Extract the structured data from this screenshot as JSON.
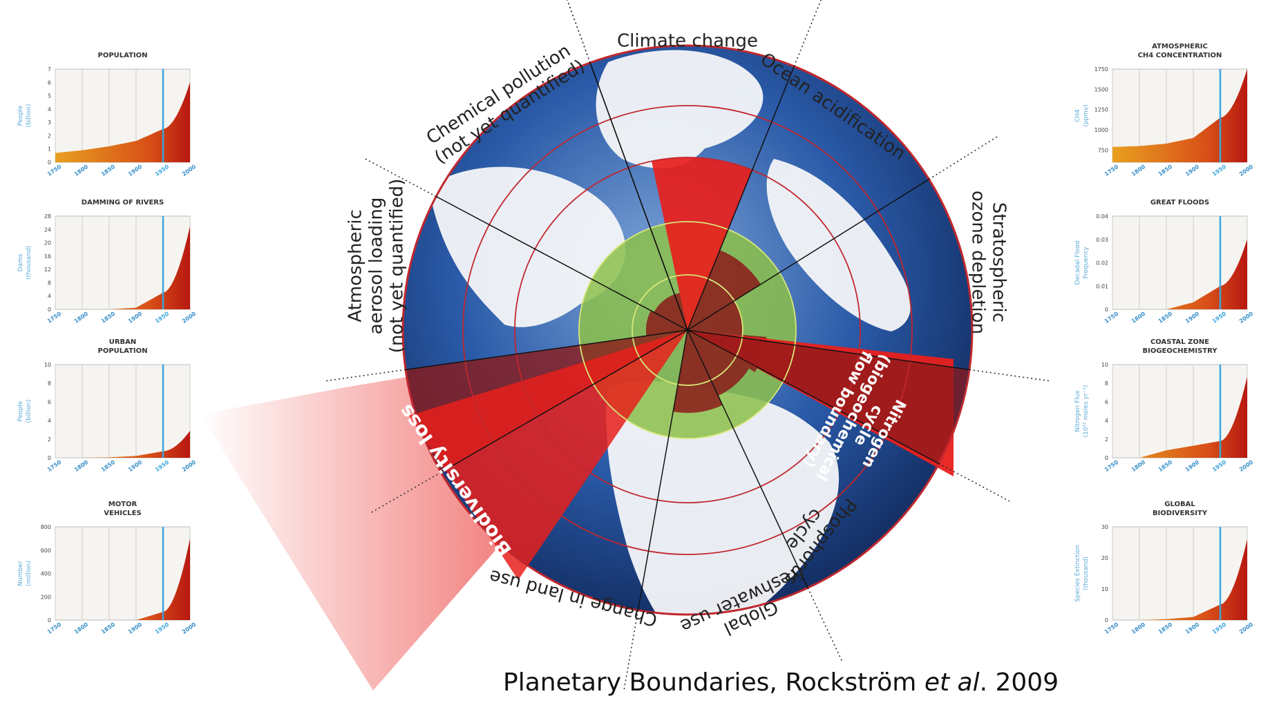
{
  "wheel": {
    "boundaries": [
      {
        "id": "climate",
        "lines": [
          "Climate change"
        ]
      },
      {
        "id": "ocean",
        "lines": [
          "Ocean acidification"
        ]
      },
      {
        "id": "ozone",
        "lines": [
          "Stratospheric",
          "ozone depletion"
        ]
      },
      {
        "id": "nitrogen",
        "lines": [
          "Nitrogen",
          "cycle",
          "(biogeochemical",
          "flow boundary)"
        ]
      },
      {
        "id": "phosphorus",
        "lines": [
          "Phosphorus",
          "cycle"
        ]
      },
      {
        "id": "freshwater",
        "lines": [
          "Global",
          "freshwater use"
        ]
      },
      {
        "id": "landuse",
        "lines": [
          "Change in land use"
        ]
      },
      {
        "id": "biodiversity",
        "lines": [
          "Biodiversity loss"
        ]
      },
      {
        "id": "aerosol",
        "lines": [
          "Atmospheric",
          "aerosol loading",
          "(not yet quantified)"
        ]
      },
      {
        "id": "chemical",
        "lines": [
          "Chemical pollution",
          "(not yet quantified)"
        ]
      }
    ],
    "colors": {
      "ocean": "#2a5aa8",
      "land": "#f4f6f8",
      "safe_zone": "#8cc04a",
      "exceeded": "#e8201c",
      "exceeded_dark": "#8b1a1a",
      "ring": "#c0272d"
    }
  },
  "caption": {
    "main": "Planetary Boundaries, Rockström ",
    "italic": "et al",
    "end": ". 2009"
  },
  "mini_charts": [
    {
      "id": "population",
      "title": [
        "POPULATION"
      ],
      "ylabel": [
        "People",
        "(billion)"
      ],
      "yticks": [
        "0",
        "1",
        "2",
        "3",
        "4",
        "5",
        "6",
        "7"
      ],
      "ymax": 7,
      "xticks": [
        "1750",
        "1800",
        "1850",
        "1900",
        "1950",
        "2000"
      ],
      "x": [
        1750,
        1800,
        1850,
        1900,
        1950,
        2000
      ],
      "y": [
        0.7,
        0.9,
        1.2,
        1.6,
        2.5,
        6.0
      ]
    },
    {
      "id": "dams",
      "title": [
        "DAMMING OF RIVERS"
      ],
      "ylabel": [
        "Dams",
        "(thousand)"
      ],
      "yticks": [
        "0",
        "4",
        "8",
        "12",
        "16",
        "20",
        "24",
        "28"
      ],
      "ymax": 28,
      "xticks": [
        "1750",
        "1800",
        "1850",
        "1900",
        "1950",
        "2000"
      ],
      "x": [
        1750,
        1800,
        1850,
        1900,
        1950,
        2000
      ],
      "y": [
        0,
        0,
        0,
        0.5,
        5,
        25
      ]
    },
    {
      "id": "urban",
      "title": [
        "URBAN",
        "POPULATION"
      ],
      "ylabel": [
        "People",
        "(billion)"
      ],
      "yticks": [
        "0",
        "2",
        "4",
        "6",
        "8",
        "10"
      ],
      "ymax": 10,
      "xticks": [
        "1750",
        "1800",
        "1850",
        "1900",
        "1950",
        "2000"
      ],
      "x": [
        1750,
        1800,
        1850,
        1900,
        1950,
        2000
      ],
      "y": [
        0,
        0,
        0.05,
        0.2,
        0.7,
        2.9
      ]
    },
    {
      "id": "vehicles",
      "title": [
        "MOTOR",
        "VEHICLES"
      ],
      "ylabel": [
        "Number",
        "(million)"
      ],
      "yticks": [
        "0",
        "200",
        "400",
        "600",
        "800"
      ],
      "ymax": 800,
      "xticks": [
        "1750",
        "1800",
        "1850",
        "1900",
        "1950",
        "2000"
      ],
      "x": [
        1750,
        1800,
        1850,
        1900,
        1950,
        2000
      ],
      "y": [
        0,
        0,
        0,
        0,
        70,
        700
      ]
    },
    {
      "id": "ch4",
      "title": [
        "ATMOSPHERIC",
        "CH4 CONCENTRATION"
      ],
      "ylabel": [
        "CH4",
        "(ppmv)"
      ],
      "yticks": [
        "750",
        "1000",
        "1250",
        "1500",
        "1750"
      ],
      "ymin": 600,
      "ymax": 1750,
      "xticks": [
        "1750",
        "1800",
        "1850",
        "1900",
        "1950",
        "2000"
      ],
      "x": [
        1750,
        1800,
        1850,
        1900,
        1950,
        2000
      ],
      "y": [
        790,
        800,
        830,
        900,
        1150,
        1750
      ]
    },
    {
      "id": "floods",
      "title": [
        "GREAT FLOODS"
      ],
      "ylabel": [
        "Decadal Flood",
        "Frequency"
      ],
      "yticks": [
        "0",
        "0.01",
        "0.02",
        "0.03",
        "0.04"
      ],
      "ymax": 0.04,
      "xticks": [
        "1750",
        "1800",
        "1850",
        "1900",
        "1950",
        "2000"
      ],
      "x": [
        1750,
        1800,
        1850,
        1900,
        1950,
        2000
      ],
      "y": [
        0,
        0,
        0,
        0.003,
        0.01,
        0.03
      ]
    },
    {
      "id": "coastal",
      "title": [
        "COASTAL ZONE",
        "BIOGEOCHEMISTRY"
      ],
      "ylabel": [
        "Nitrogen Flux",
        "(10¹² moles yr⁻¹)"
      ],
      "yticks": [
        "0",
        "2",
        "4",
        "6",
        "8",
        "10"
      ],
      "ymax": 10,
      "xticks": [
        "1750",
        "1800",
        "1850",
        "1900",
        "1950",
        "2000"
      ],
      "x": [
        1750,
        1800,
        1850,
        1900,
        1950,
        2000
      ],
      "y": [
        0,
        0,
        0.8,
        1.3,
        1.8,
        8.7
      ]
    },
    {
      "id": "biodiversity",
      "title": [
        "GLOBAL",
        "BIODIVERSITY"
      ],
      "ylabel": [
        "Species Extinction",
        "(thousand)"
      ],
      "yticks": [
        "0",
        "10",
        "20",
        "30"
      ],
      "ymax": 30,
      "xticks": [
        "1750",
        "1800",
        "1850",
        "1900",
        "1950",
        "2000"
      ],
      "x": [
        1750,
        1800,
        1850,
        1900,
        1950,
        2000
      ],
      "y": [
        0,
        0,
        0.3,
        1,
        5,
        26
      ]
    }
  ]
}
